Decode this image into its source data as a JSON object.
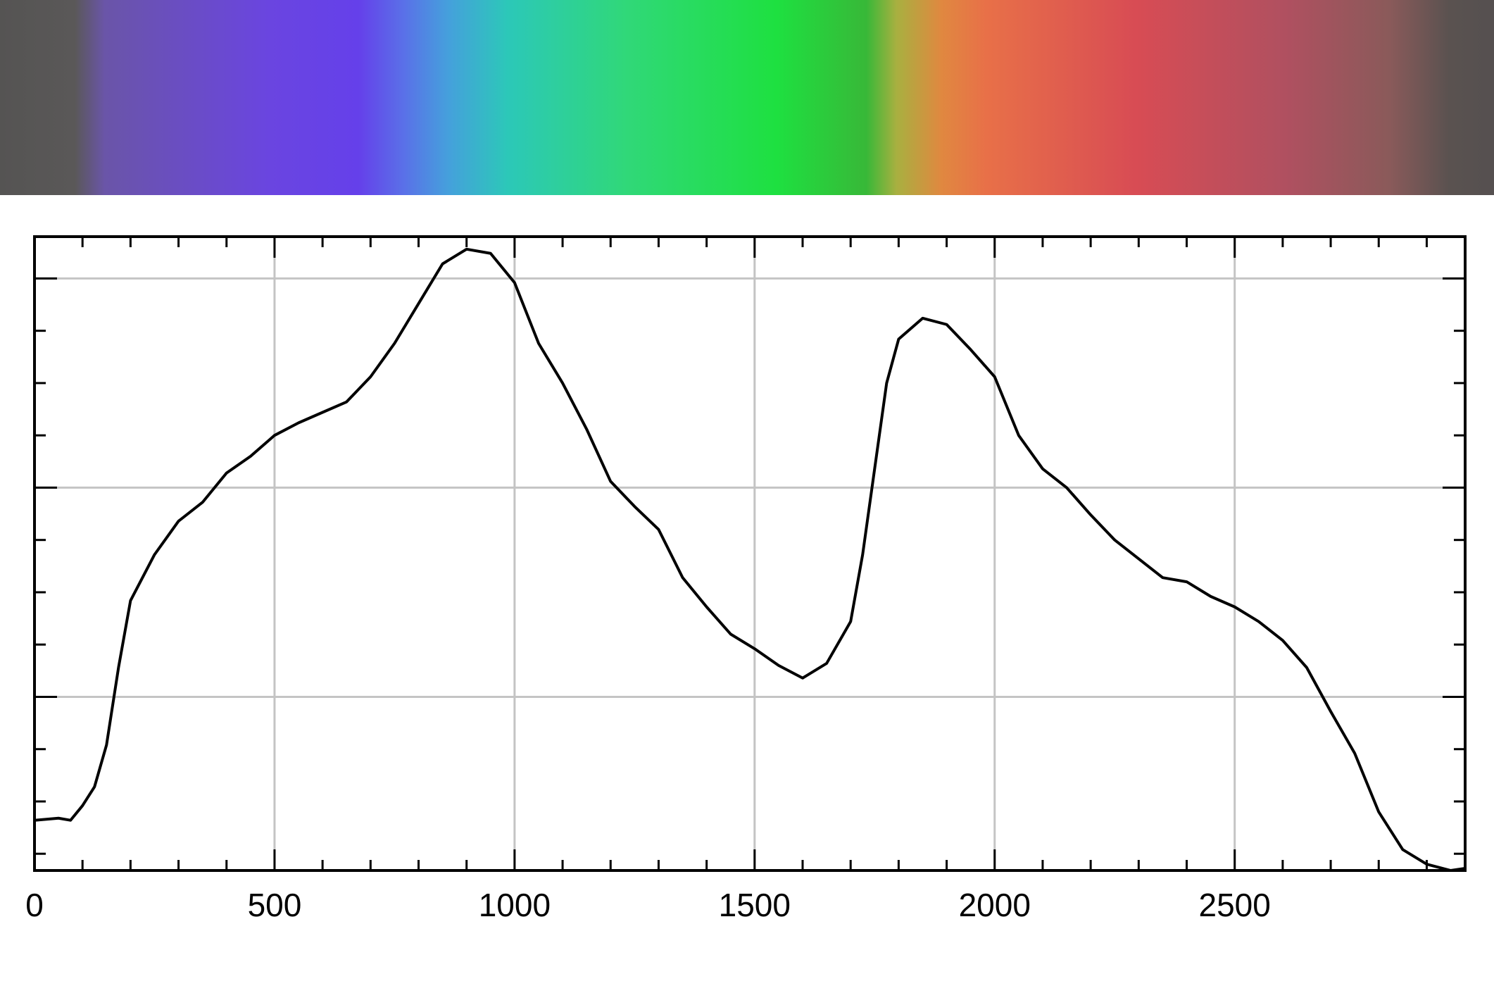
{
  "chart_data": {
    "type": "line",
    "color": "#000000",
    "grid": true,
    "x": [
      0,
      50,
      75,
      100,
      125,
      150,
      175,
      200,
      250,
      300,
      350,
      400,
      450,
      500,
      550,
      600,
      650,
      700,
      750,
      800,
      850,
      900,
      950,
      1000,
      1050,
      1100,
      1150,
      1200,
      1250,
      1300,
      1350,
      1400,
      1450,
      1500,
      1550,
      1600,
      1650,
      1700,
      1725,
      1750,
      1775,
      1800,
      1850,
      1900,
      1950,
      2000,
      2050,
      2100,
      2150,
      2200,
      2250,
      2300,
      2350,
      2400,
      2450,
      2500,
      2550,
      2600,
      2650,
      2700,
      2750,
      2800,
      2850,
      2900,
      2950,
      2980
    ],
    "values": [
      0.41,
      0.42,
      0.41,
      0.48,
      0.57,
      0.77,
      1.14,
      1.46,
      1.68,
      1.84,
      1.93,
      2.07,
      2.15,
      2.25,
      2.31,
      2.36,
      2.41,
      2.53,
      2.69,
      2.88,
      3.07,
      3.14,
      3.12,
      2.98,
      2.69,
      2.5,
      2.28,
      2.03,
      1.91,
      1.8,
      1.57,
      1.43,
      1.3,
      1.23,
      1.15,
      1.09,
      1.16,
      1.36,
      1.68,
      2.09,
      2.5,
      2.71,
      2.81,
      2.78,
      2.66,
      2.53,
      2.25,
      2.09,
      2.0,
      1.87,
      1.75,
      1.66,
      1.57,
      1.55,
      1.48,
      1.43,
      1.36,
      1.27,
      1.14,
      0.93,
      0.73,
      0.45,
      0.27,
      0.2,
      0.17,
      0.18
    ],
    "xlim": [
      0,
      2980
    ],
    "xticks": [
      0,
      500,
      1000,
      1500,
      2000,
      2500
    ],
    "xminorticks": [
      100,
      200,
      300,
      400,
      600,
      700,
      800,
      900,
      1100,
      1200,
      1300,
      1400,
      1600,
      1700,
      1800,
      1900,
      2100,
      2200,
      2300,
      2400,
      2600,
      2700,
      2800,
      2900
    ],
    "ylim": [
      0.17,
      3.2
    ],
    "yticks": [
      1,
      2,
      3
    ],
    "yminorticks": [
      0.25,
      0.5,
      0.75,
      1.25,
      1.5,
      1.75,
      2.25,
      2.5,
      2.75
    ]
  }
}
